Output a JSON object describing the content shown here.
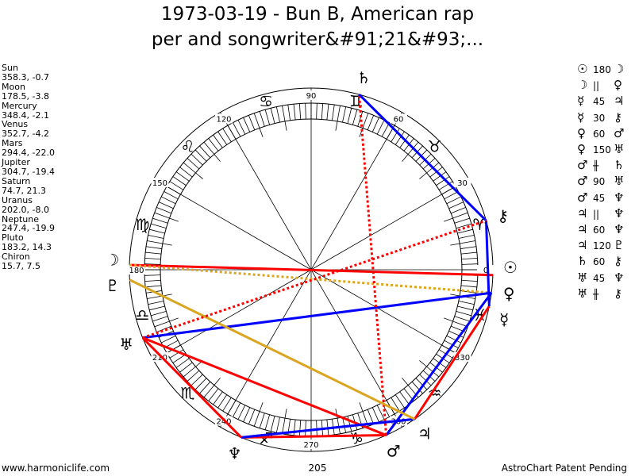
{
  "title": {
    "line1": "1973-03-19 - Bun B, American rap",
    "line2": "per and songwriter&#91;21&#93;..."
  },
  "planets": [
    {
      "name": "Sun",
      "glyph": "☉",
      "pos": "358.3, -0.7",
      "lon": 358.3
    },
    {
      "name": "Moon",
      "glyph": "☽",
      "pos": "178.5, -3.8",
      "lon": 178.5
    },
    {
      "name": "Mercury",
      "glyph": "☿",
      "pos": "348.4, -2.1",
      "lon": 348.4
    },
    {
      "name": "Venus",
      "glyph": "♀",
      "pos": "352.7, -4.2",
      "lon": 352.7
    },
    {
      "name": "Mars",
      "glyph": "♂",
      "pos": "294.4, -22.0",
      "lon": 294.4
    },
    {
      "name": "Jupiter",
      "glyph": "♃",
      "pos": "304.7, -19.4",
      "lon": 304.7
    },
    {
      "name": "Saturn",
      "glyph": "♄",
      "pos": "74.7, 21.3",
      "lon": 74.7
    },
    {
      "name": "Uranus",
      "glyph": "♅",
      "pos": "202.0, -8.0",
      "lon": 202.0
    },
    {
      "name": "Neptune",
      "glyph": "♆",
      "pos": "247.4, -19.9",
      "lon": 247.4
    },
    {
      "name": "Pluto",
      "glyph": "♇",
      "pos": "183.2, 14.3",
      "lon": 183.2
    },
    {
      "name": "Chiron",
      "glyph": "⚷",
      "pos": "15.7, 7.5",
      "lon": 15.7
    }
  ],
  "aspects": [
    {
      "p1": 0,
      "type": "180",
      "p2": 1,
      "color": "#ff0000",
      "dash": false
    },
    {
      "p1": 1,
      "type": "||",
      "p2": 3,
      "color": "#daa520",
      "dash": true
    },
    {
      "p1": 2,
      "type": "45",
      "p2": 5,
      "color": "#ff0000",
      "dash": false
    },
    {
      "p1": 2,
      "type": "30",
      "p2": 10,
      "color": "#0000ff",
      "dash": false
    },
    {
      "p1": 3,
      "type": "60",
      "p2": 4,
      "color": "#0000ff",
      "dash": false
    },
    {
      "p1": 3,
      "type": "150",
      "p2": 7,
      "color": "#0000ff",
      "dash": false
    },
    {
      "p1": 4,
      "type": "#",
      "p2": 6,
      "color": "#ff0000",
      "dash": true
    },
    {
      "p1": 4,
      "type": "90",
      "p2": 7,
      "color": "#ff0000",
      "dash": false
    },
    {
      "p1": 4,
      "type": "45",
      "p2": 8,
      "color": "#ff0000",
      "dash": false
    },
    {
      "p1": 5,
      "type": "||",
      "p2": 8,
      "color": "#0000ff",
      "dash": true
    },
    {
      "p1": 5,
      "type": "60",
      "p2": 8,
      "color": "#0000ff",
      "dash": false
    },
    {
      "p1": 5,
      "type": "120",
      "p2": 9,
      "color": "#daa520",
      "dash": false
    },
    {
      "p1": 6,
      "type": "60",
      "p2": 10,
      "color": "#0000ff",
      "dash": false
    },
    {
      "p1": 7,
      "type": "45",
      "p2": 8,
      "color": "#ff0000",
      "dash": false
    },
    {
      "p1": 7,
      "type": "#",
      "p2": 10,
      "color": "#ff0000",
      "dash": true
    }
  ],
  "signs": [
    "♈",
    "♉",
    "♊",
    "♋",
    "♌",
    "♍",
    "♎",
    "♏",
    "♐",
    "♑",
    "♒",
    "♓"
  ],
  "degree_labels": [
    "0",
    "30",
    "60",
    "90",
    "120",
    "150",
    "180",
    "210",
    "240",
    "270",
    "300",
    "330"
  ],
  "center_value": "205",
  "footer": {
    "left": "www.harmoniclife.com",
    "right": "AstroChart Patent Pending"
  }
}
